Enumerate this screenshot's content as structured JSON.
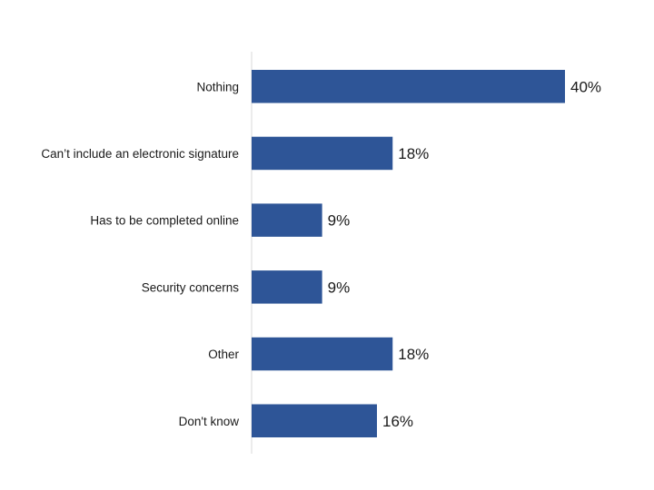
{
  "chart_data": {
    "type": "bar",
    "orientation": "horizontal",
    "categories": [
      "Nothing",
      "Can’t include an electronic signature",
      "Has to be completed online",
      "Security concerns",
      "Other",
      "Don't know"
    ],
    "values": [
      40,
      18,
      9,
      9,
      18,
      16
    ],
    "data_labels": [
      "40%",
      "18%",
      "9%",
      "9%",
      "18%",
      "16%"
    ],
    "unit": "%",
    "xlim": [
      0,
      40
    ],
    "grid": false,
    "legend": "none",
    "colors": {
      "bar": "#2E5597",
      "axis": "#d9d9d9",
      "text": "#1a1a1a"
    }
  }
}
